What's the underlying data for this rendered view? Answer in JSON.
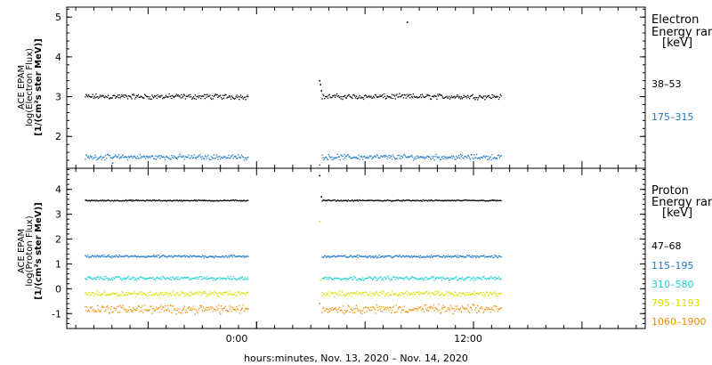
{
  "chart_data": [
    {
      "type": "scatter",
      "panel": "electron",
      "ylabel_lines": [
        "ACE EPAM",
        "log(Electron Flux)",
        "[1/(cm²s ster MeV)]"
      ],
      "ylim": [
        1.2,
        5.25
      ],
      "yticks": [
        2,
        3,
        4,
        5
      ],
      "legend": {
        "title_lines": [
          "Electron",
          "Energy ran",
          "[keV]"
        ]
      },
      "series": [
        {
          "name": "38–53",
          "color": "#000000",
          "segments": [
            {
              "x": [
                -9.5,
                -0.5
              ],
              "level": 3.0,
              "noise": 0.05
            },
            {
              "x": [
                3.6,
                13.5
              ],
              "level": 3.0,
              "noise": 0.05
            }
          ],
          "extra_points": [
            [
              3.45,
              3.4
            ],
            [
              3.5,
              3.3
            ],
            [
              3.55,
              3.15
            ],
            [
              8.3,
              4.87
            ]
          ]
        },
        {
          "name": "175–315",
          "color": "#1f78c8",
          "segments": [
            {
              "x": [
                -9.5,
                -0.5
              ],
              "level": 1.48,
              "noise": 0.05
            },
            {
              "x": [
                3.6,
                13.5
              ],
              "level": 1.48,
              "noise": 0.05
            }
          ],
          "extra_points": [
            [
              3.45,
              1.28
            ],
            [
              -8.0,
              1.33
            ]
          ]
        }
      ]
    },
    {
      "type": "scatter",
      "panel": "proton",
      "ylabel_lines": [
        "ACE EPAM",
        "log(Proton Flux)",
        "[1/(cm²s ster MeV)]"
      ],
      "ylim": [
        -1.6,
        4.85
      ],
      "yticks": [
        -1,
        0,
        1,
        2,
        3,
        4
      ],
      "legend": {
        "title_lines": [
          "Proton",
          "Energy ran",
          "[keV]"
        ]
      },
      "series": [
        {
          "name": "47–68",
          "color": "#000000",
          "segments": [
            {
              "x": [
                -9.5,
                -0.5
              ],
              "level": 3.55,
              "noise": 0.02
            },
            {
              "x": [
                3.6,
                13.5
              ],
              "level": 3.55,
              "noise": 0.02
            }
          ],
          "extra_points": [
            [
              3.45,
              4.55
            ],
            [
              3.55,
              3.7
            ]
          ]
        },
        {
          "name": "115–195",
          "color": "#1f78c8",
          "segments": [
            {
              "x": [
                -9.5,
                -0.5
              ],
              "level": 1.3,
              "noise": 0.04
            },
            {
              "x": [
                3.6,
                13.5
              ],
              "level": 1.3,
              "noise": 0.04
            }
          ],
          "extra_points": []
        },
        {
          "name": "310–580",
          "color": "#19d2d2",
          "segments": [
            {
              "x": [
                -9.5,
                -0.5
              ],
              "level": 0.42,
              "noise": 0.06
            },
            {
              "x": [
                3.6,
                13.5
              ],
              "level": 0.42,
              "noise": 0.06
            }
          ],
          "extra_points": []
        },
        {
          "name": "795–1193",
          "color": "#d7e000",
          "segments": [
            {
              "x": [
                -9.5,
                -0.5
              ],
              "level": -0.2,
              "noise": 0.08
            },
            {
              "x": [
                3.6,
                13.5
              ],
              "level": -0.2,
              "noise": 0.08
            }
          ],
          "extra_points": [
            [
              3.45,
              2.7
            ],
            [
              3.5,
              0.35
            ]
          ]
        },
        {
          "name": "1060–1900",
          "color": "#f08a00",
          "segments": [
            {
              "x": [
                -9.5,
                -0.5
              ],
              "level": -0.82,
              "noise": 0.13
            },
            {
              "x": [
                3.6,
                13.5
              ],
              "level": -0.82,
              "noise": 0.13
            }
          ],
          "extra_points": [
            [
              3.45,
              -0.6
            ]
          ]
        }
      ]
    }
  ],
  "x_axis": {
    "range_hours": [
      -10.5,
      21.5
    ],
    "tick_labels": [
      {
        "x": 0,
        "label": "0:00"
      },
      {
        "x": 12,
        "label": "12:00"
      }
    ],
    "major_every": 1,
    "xlabel": "hours:minutes, Nov. 13, 2020 – Nov. 14, 2020"
  }
}
